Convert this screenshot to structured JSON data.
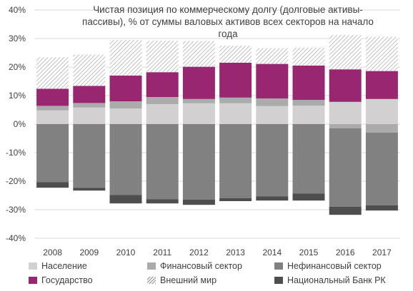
{
  "chart_data": {
    "type": "bar",
    "stacked": true,
    "title": "Чистая позиция по коммерческому долгу (долговые активы-пассивы), % от суммы валовых активов всех секторов на начало года",
    "categories": [
      "2008",
      "2009",
      "2010",
      "2011",
      "2012",
      "2013",
      "2014",
      "2015",
      "2016",
      "2017"
    ],
    "ylim": [
      -40,
      40
    ],
    "yticks": [
      -40,
      -30,
      -20,
      -10,
      0,
      10,
      20,
      30,
      40
    ],
    "ytick_labels": [
      "-40%",
      "-30%",
      "-20%",
      "-10%",
      "0%",
      "10%",
      "20%",
      "30%",
      "40%"
    ],
    "grid": true,
    "legend_position": "bottom",
    "series": [
      {
        "name": "Население",
        "color": "#d3d0d1",
        "pattern": "solid",
        "values": [
          4.8,
          5.8,
          5.5,
          7.0,
          7.3,
          7.3,
          6.3,
          6.5,
          7.8,
          8.8
        ]
      },
      {
        "name": "Финансовый сектор",
        "color": "#ababab",
        "pattern": "solid",
        "values": [
          1.6,
          1.6,
          2.5,
          2.5,
          1.5,
          2.0,
          2.7,
          2.0,
          -1.5,
          -3.0
        ]
      },
      {
        "name": "Нефинансовый сектор",
        "color": "#818181",
        "pattern": "solid",
        "values": [
          -20.3,
          -22.3,
          -24.8,
          -26.3,
          -26.5,
          -26.0,
          -25.3,
          -24.3,
          -27.5,
          -25.5
        ]
      },
      {
        "name": "Государство",
        "color": "#992670",
        "pattern": "solid",
        "values": [
          6.0,
          6.0,
          9.0,
          8.7,
          11.3,
          12.2,
          12.1,
          12.0,
          11.4,
          9.8
        ]
      },
      {
        "name": "Внешний мир",
        "color": "#a6a6a6",
        "pattern": "hatch",
        "values": [
          11.0,
          11.0,
          12.5,
          11.0,
          9.0,
          6.0,
          5.5,
          6.3,
          12.0,
          12.0
        ]
      },
      {
        "name": "Национальный Банк РК",
        "color": "#4e4e4e",
        "pattern": "solid",
        "values": [
          -2.0,
          -1.0,
          -3.0,
          -1.5,
          -1.8,
          -1.0,
          -1.5,
          -2.5,
          -2.8,
          -1.8
        ]
      }
    ]
  }
}
